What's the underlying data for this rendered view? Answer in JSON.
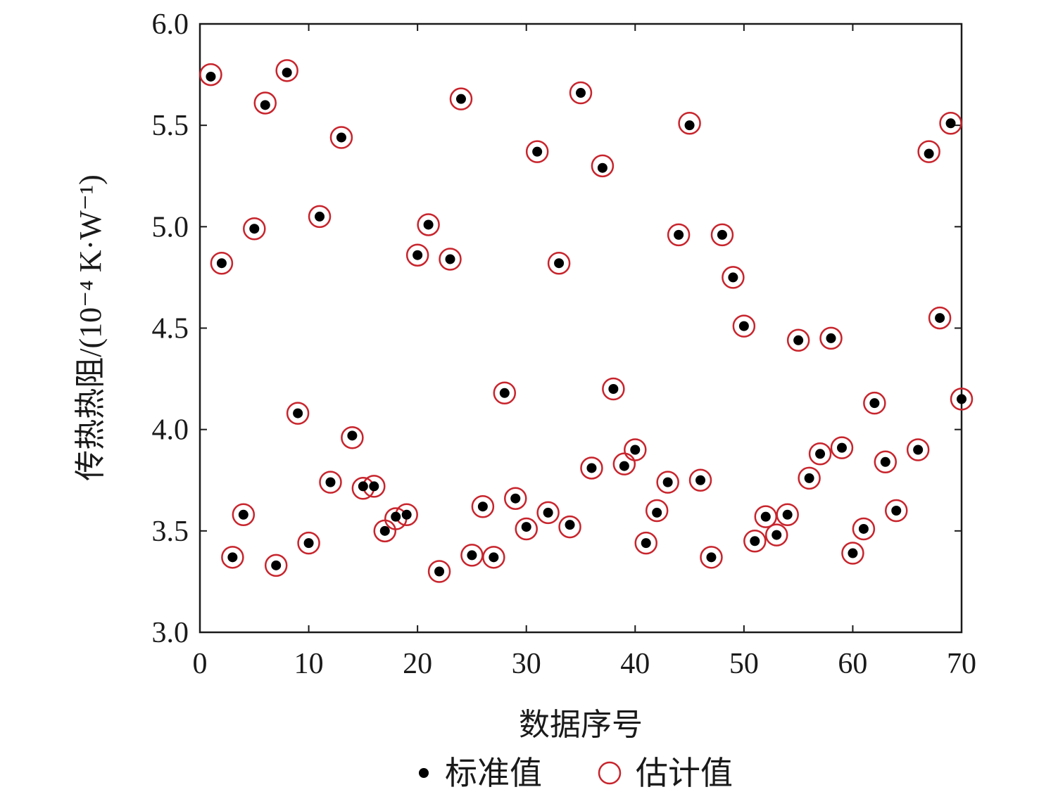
{
  "chart_data": {
    "type": "scatter",
    "title": "",
    "xlabel": "数据序号",
    "ylabel": "传热热阻/(10⁻⁴ K·W⁻¹)",
    "xlim": [
      0,
      70
    ],
    "ylim": [
      3.0,
      6.0
    ],
    "x_ticks": [
      0,
      10,
      20,
      30,
      40,
      50,
      60,
      70
    ],
    "y_ticks": [
      3.0,
      3.5,
      4.0,
      4.5,
      5.0,
      5.5,
      6.0
    ],
    "x_tick_labels": [
      "0",
      "10",
      "20",
      "30",
      "40",
      "50",
      "60",
      "70"
    ],
    "y_tick_labels": [
      "3.0",
      "3.5",
      "4.0",
      "4.5",
      "5.0",
      "5.5",
      "6.0"
    ],
    "grid": false,
    "legend_position": "bottom-center",
    "colors": {
      "standard": "#000000",
      "estimate": "#c8242c",
      "axis": "#1a1a1a"
    },
    "series": [
      {
        "name": "标准值",
        "marker": "filled-dot",
        "x": [
          1,
          2,
          3,
          4,
          5,
          6,
          7,
          8,
          9,
          10,
          11,
          12,
          13,
          14,
          15,
          16,
          17,
          18,
          19,
          20,
          21,
          22,
          23,
          24,
          25,
          26,
          27,
          28,
          29,
          30,
          31,
          32,
          33,
          34,
          35,
          36,
          37,
          38,
          39,
          40,
          41,
          42,
          43,
          44,
          45,
          46,
          47,
          48,
          49,
          50,
          51,
          52,
          53,
          54,
          55,
          56,
          57,
          58,
          59,
          60,
          61,
          62,
          63,
          64,
          66,
          67,
          68,
          69,
          70
        ],
        "y": [
          5.74,
          4.82,
          3.37,
          3.58,
          4.99,
          5.6,
          3.33,
          5.76,
          4.08,
          3.44,
          5.05,
          3.74,
          5.44,
          3.97,
          3.72,
          3.72,
          3.5,
          3.57,
          3.58,
          4.86,
          5.01,
          3.3,
          4.84,
          5.63,
          3.38,
          3.62,
          3.37,
          4.18,
          3.66,
          3.52,
          5.37,
          3.59,
          4.82,
          3.53,
          5.66,
          3.81,
          5.29,
          4.2,
          3.82,
          3.9,
          3.44,
          3.59,
          3.74,
          4.96,
          5.5,
          3.75,
          3.37,
          4.96,
          4.75,
          4.51,
          3.45,
          3.57,
          3.48,
          3.58,
          4.44,
          3.76,
          3.88,
          4.45,
          3.91,
          3.39,
          3.51,
          4.13,
          3.84,
          3.6,
          3.9,
          5.36,
          4.55,
          5.51,
          4.15
        ]
      },
      {
        "name": "估计值",
        "marker": "hollow-circle",
        "x": [
          1,
          2,
          3,
          4,
          5,
          6,
          7,
          8,
          9,
          10,
          11,
          12,
          13,
          14,
          15,
          16,
          17,
          18,
          19,
          20,
          21,
          22,
          23,
          24,
          25,
          26,
          27,
          28,
          29,
          30,
          31,
          32,
          33,
          34,
          35,
          36,
          37,
          38,
          39,
          40,
          41,
          42,
          43,
          44,
          45,
          46,
          47,
          48,
          49,
          50,
          51,
          52,
          53,
          54,
          55,
          56,
          57,
          58,
          59,
          60,
          61,
          62,
          63,
          64,
          66,
          67,
          68,
          69,
          70
        ],
        "y": [
          5.75,
          4.82,
          3.37,
          3.58,
          4.99,
          5.61,
          3.33,
          5.77,
          4.08,
          3.44,
          5.05,
          3.74,
          5.44,
          3.96,
          3.71,
          3.72,
          3.5,
          3.56,
          3.58,
          4.86,
          5.01,
          3.3,
          4.84,
          5.63,
          3.38,
          3.62,
          3.37,
          4.18,
          3.66,
          3.51,
          5.37,
          3.59,
          4.82,
          3.52,
          5.66,
          3.81,
          5.3,
          4.2,
          3.83,
          3.9,
          3.44,
          3.6,
          3.74,
          4.96,
          5.51,
          3.75,
          3.37,
          4.96,
          4.75,
          4.51,
          3.45,
          3.57,
          3.48,
          3.58,
          4.44,
          3.76,
          3.88,
          4.45,
          3.91,
          3.39,
          3.51,
          4.13,
          3.84,
          3.6,
          3.9,
          5.37,
          4.55,
          5.51,
          4.15
        ]
      }
    ]
  }
}
